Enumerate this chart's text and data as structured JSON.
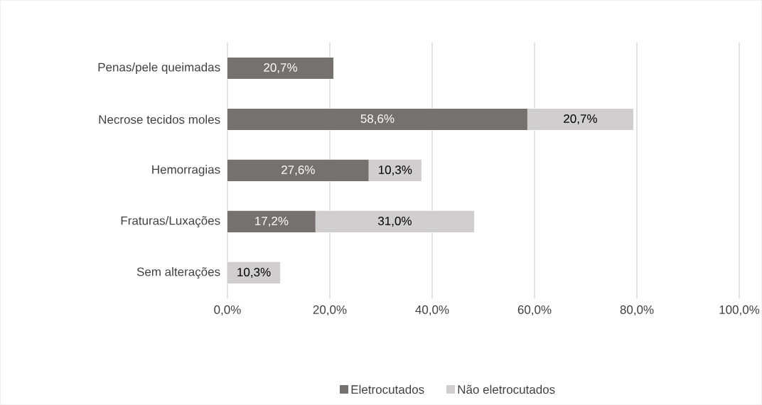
{
  "chart_data": {
    "type": "bar",
    "orientation": "horizontal",
    "stacked": true,
    "categories": [
      "Penas/pele queimadas",
      "Necrose tecidos moles",
      "Hemorragias",
      "Fraturas/Luxações",
      "Sem alterações"
    ],
    "series": [
      {
        "name": "Eletrocutados",
        "color": "#767171",
        "values": [
          20.7,
          58.6,
          27.6,
          17.2,
          null
        ],
        "value_labels": [
          "20,7%",
          "58,6%",
          "27,6%",
          "17,2%",
          null
        ]
      },
      {
        "name": "Não eletrocutados",
        "color": "#d0cece",
        "values": [
          null,
          20.7,
          10.3,
          31.0,
          10.3
        ],
        "value_labels": [
          null,
          "20,7%",
          "10,3%",
          "31,0%",
          "10,3%"
        ]
      }
    ],
    "xlim": [
      0,
      100
    ],
    "xticks": [
      {
        "value": 0,
        "label": "0,0%"
      },
      {
        "value": 20,
        "label": "20,0%"
      },
      {
        "value": 40,
        "label": "40,0%"
      },
      {
        "value": 60,
        "label": "60,0%"
      },
      {
        "value": 80,
        "label": "80,0%"
      },
      {
        "value": 100,
        "label": "100,0%"
      }
    ],
    "grid": "x",
    "legend": "bottom"
  }
}
